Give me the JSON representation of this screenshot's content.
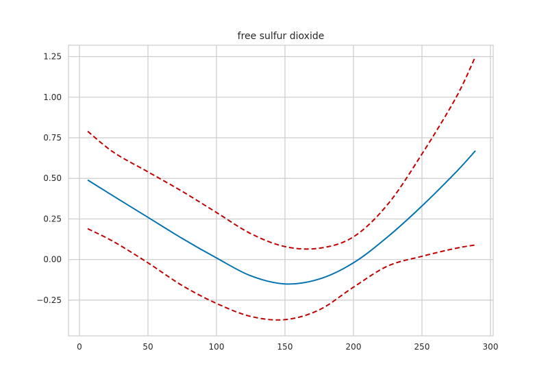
{
  "chart_data": {
    "type": "line",
    "title": "free sulfur dioxide",
    "xlabel": "",
    "ylabel": "",
    "xlim": [
      -8,
      302
    ],
    "ylim": [
      -0.47,
      1.32
    ],
    "grid": true,
    "xticks": [
      0,
      50,
      100,
      150,
      200,
      250,
      300
    ],
    "xtick_labels": [
      "0",
      "50",
      "100",
      "150",
      "200",
      "250",
      "300"
    ],
    "yticks": [
      -0.25,
      0.0,
      0.25,
      0.5,
      0.75,
      1.0,
      1.25
    ],
    "ytick_labels": [
      "−0.25",
      "0.00",
      "0.25",
      "0.50",
      "0.75",
      "1.00",
      "1.25"
    ],
    "colors": {
      "main": "#0072b2",
      "ci": "#c00000",
      "grid": "#cccccc",
      "axis": "#cccccc"
    },
    "series": [
      {
        "role": "estimate",
        "style": "solid",
        "x": [
          6,
          25,
          50,
          75,
          100,
          125,
          150,
          175,
          200,
          225,
          250,
          275,
          289
        ],
        "y": [
          0.49,
          0.39,
          0.26,
          0.13,
          0.01,
          -0.1,
          -0.15,
          -0.12,
          -0.02,
          0.14,
          0.33,
          0.54,
          0.67
        ]
      },
      {
        "role": "upper-bound",
        "style": "dashed",
        "x": [
          6,
          25,
          50,
          75,
          100,
          125,
          150,
          175,
          200,
          225,
          250,
          275,
          289
        ],
        "y": [
          0.79,
          0.66,
          0.54,
          0.42,
          0.29,
          0.16,
          0.08,
          0.07,
          0.14,
          0.34,
          0.65,
          1.0,
          1.25
        ]
      },
      {
        "role": "lower-bound",
        "style": "dashed",
        "x": [
          6,
          25,
          50,
          75,
          100,
          125,
          150,
          175,
          200,
          225,
          250,
          275,
          289
        ],
        "y": [
          0.19,
          0.11,
          -0.02,
          -0.16,
          -0.27,
          -0.35,
          -0.37,
          -0.31,
          -0.17,
          -0.04,
          0.02,
          0.07,
          0.09
        ]
      }
    ]
  }
}
